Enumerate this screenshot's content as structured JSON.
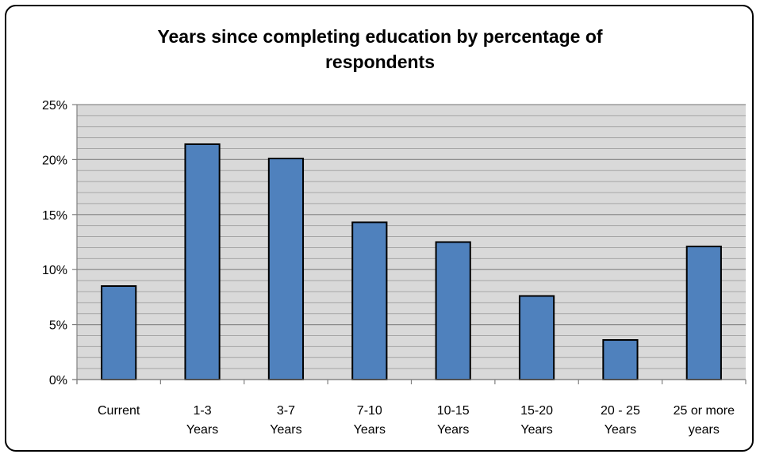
{
  "chart_data": {
    "type": "bar",
    "title": "Years since completing education by percentage of respondents",
    "categories": [
      [
        "Current"
      ],
      [
        "1-3",
        "Years"
      ],
      [
        "3-7",
        "Years"
      ],
      [
        "7-10",
        "Years"
      ],
      [
        "10-15",
        "Years"
      ],
      [
        "15-20",
        "Years"
      ],
      [
        "20 - 25",
        "Years"
      ],
      [
        "25 or more",
        "years"
      ]
    ],
    "values": [
      8.5,
      21.4,
      20.1,
      14.3,
      12.5,
      7.6,
      3.6,
      12.1
    ],
    "ylim": [
      0,
      25
    ],
    "yticks": [
      "0%",
      "5%",
      "10%",
      "15%",
      "20%",
      "25%"
    ],
    "ytick_values": [
      0,
      5,
      10,
      15,
      20,
      25
    ],
    "minor_grid_step": 1,
    "grid": true,
    "legend": "none",
    "colors": {
      "bar": "#4f81bd",
      "bar_edge": "#000000",
      "plot_bg": "#d9d9d9",
      "grid": "#8c8c8c"
    }
  }
}
